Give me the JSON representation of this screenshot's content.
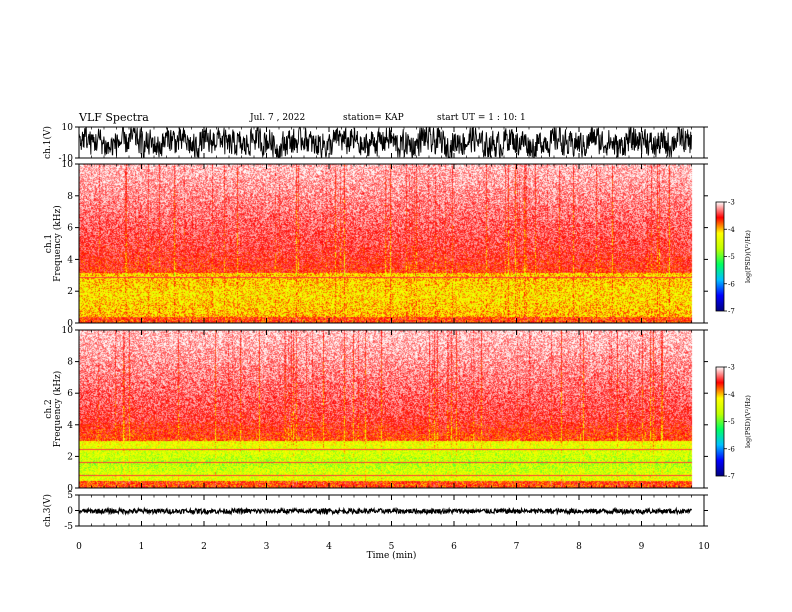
{
  "header": {
    "title": "VLF Spectra",
    "date": "Jul. 7 , 2022",
    "station": "station= KAP",
    "start": "start UT = 1 : 10: 1"
  },
  "chart_data": [
    {
      "name": "ch1-waveform",
      "type": "line",
      "ylabel": "ch.1(V)",
      "ylim": [
        -10,
        10
      ],
      "y_ticks": [
        "10",
        "-10"
      ],
      "xlim": [
        0,
        10
      ],
      "color": "#000000"
    },
    {
      "name": "ch1-spectrogram",
      "type": "heatmap",
      "ylabel": "ch.1\nFrequency (kHz)",
      "ylabel_lines": [
        "ch.1",
        "Frequency (kHz)"
      ],
      "ylim": [
        0,
        10
      ],
      "y_ticks": [
        "0",
        "2",
        "4",
        "6",
        "8",
        "10"
      ],
      "xlim": [
        0,
        10
      ],
      "data_end_min": 9.8,
      "colorbar": {
        "label": "log(PSD)(V²/Hz)",
        "range": [
          -7,
          -3
        ],
        "ticks": [
          "-3",
          "-4",
          "-5",
          "-6",
          "-7"
        ],
        "colors": [
          "#000080",
          "#0000ff",
          "#00c0ff",
          "#00ff60",
          "#c0ff00",
          "#ffff00",
          "#ff0000",
          "#ffffff"
        ]
      }
    },
    {
      "name": "ch2-spectrogram",
      "type": "heatmap",
      "ylabel": "ch.2\nFrequency (kHz)",
      "ylabel_lines": [
        "ch.2",
        "Frequency (kHz)"
      ],
      "ylim": [
        0,
        10
      ],
      "y_ticks": [
        "0",
        "2",
        "4",
        "6",
        "8",
        "10"
      ],
      "xlim": [
        0,
        10
      ],
      "data_end_min": 9.8,
      "colorbar": {
        "label": "log(PSD)(V²/Hz)",
        "range": [
          -7,
          -3
        ],
        "ticks": [
          "-3",
          "-4",
          "-5",
          "-6",
          "-7"
        ],
        "colors": [
          "#000080",
          "#0000ff",
          "#00c0ff",
          "#00ff60",
          "#c0ff00",
          "#ffff00",
          "#ff0000",
          "#ffffff"
        ]
      }
    },
    {
      "name": "ch3-waveform",
      "type": "line",
      "ylabel": "ch.3(V)",
      "ylim": [
        -5,
        5
      ],
      "y_ticks": [
        "5",
        "0",
        "-5"
      ],
      "xlim": [
        0,
        10
      ],
      "x_ticks": [
        "0",
        "1",
        "2",
        "3",
        "4",
        "5",
        "6",
        "7",
        "8",
        "9",
        "10"
      ],
      "xlabel": "Time (min)",
      "color": "#000000"
    }
  ]
}
